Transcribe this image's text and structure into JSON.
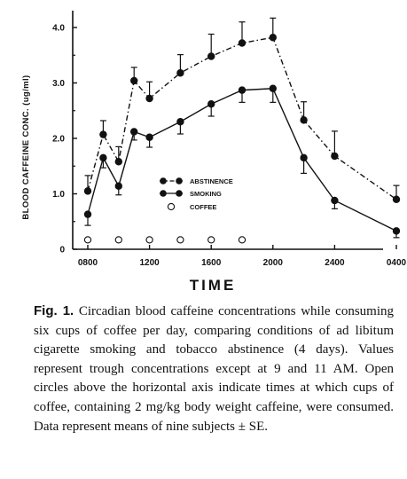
{
  "chart_data": {
    "type": "line",
    "ylabel": "BLOOD CAFFEINE CONC. (ug/ml)",
    "xlabel": "TIME",
    "ylim": [
      0,
      4.2
    ],
    "yticks": [
      0,
      1.0,
      2.0,
      3.0,
      4.0
    ],
    "ytick_labels": [
      "0",
      "1.0",
      "2.0",
      "3.0",
      "4.0"
    ],
    "x_hours": [
      8,
      12,
      16,
      20,
      24,
      28
    ],
    "x_tick_labels": [
      "0800",
      "1200",
      "1600",
      "2000",
      "2400",
      "0400"
    ],
    "xlim_hours": [
      8,
      28
    ],
    "grid": false,
    "legend_placement": "center",
    "series": [
      {
        "name": "ABSTINENCE",
        "style": "dash-dot",
        "x_hours": [
          8,
          9,
          10,
          11,
          12,
          14,
          16,
          18,
          20,
          22,
          24,
          28
        ],
        "values": [
          1.05,
          2.07,
          1.58,
          3.04,
          2.72,
          3.18,
          3.48,
          3.72,
          3.82,
          2.33,
          1.68,
          0.9
        ],
        "error": [
          0.28,
          0.25,
          0.27,
          0.24,
          0.3,
          0.33,
          0.4,
          0.38,
          0.35,
          0.33,
          0.45,
          0.25
        ]
      },
      {
        "name": "SMOKING",
        "style": "solid",
        "x_hours": [
          8,
          9,
          10,
          11,
          12,
          14,
          16,
          18,
          20,
          22,
          24,
          28
        ],
        "values": [
          0.63,
          1.65,
          1.14,
          2.12,
          2.02,
          2.3,
          2.62,
          2.87,
          2.9,
          1.65,
          0.88,
          0.33
        ],
        "error": [
          0.2,
          0.18,
          0.16,
          0.15,
          0.18,
          0.22,
          0.22,
          0.22,
          0.25,
          0.28,
          0.15,
          0.12
        ]
      }
    ],
    "coffee": {
      "name": "COFFEE",
      "x_hours": [
        8,
        10,
        12,
        14,
        16,
        18
      ],
      "value": 0.17
    }
  },
  "caption": {
    "label": "Fig. 1.",
    "text": " Circadian blood caffeine concentrations while consuming six cups of coffee per day, comparing conditions of ad libitum cigarette smoking and tobacco abstinence (4 days). Values represent trough concentrations except at 9 and 11 AM. Open circles above the horizontal axis indicate times at which cups of coffee, containing 2 mg/kg body weight caffeine, were consumed. Data represent means of nine subjects ± SE."
  }
}
